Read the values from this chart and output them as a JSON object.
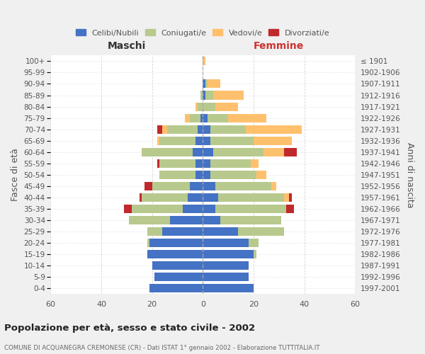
{
  "age_groups": [
    "0-4",
    "5-9",
    "10-14",
    "15-19",
    "20-24",
    "25-29",
    "30-34",
    "35-39",
    "40-44",
    "45-49",
    "50-54",
    "55-59",
    "60-64",
    "65-69",
    "70-74",
    "75-79",
    "80-84",
    "85-89",
    "90-94",
    "95-99",
    "100+"
  ],
  "birth_years": [
    "1997-2001",
    "1992-1996",
    "1987-1991",
    "1982-1986",
    "1977-1981",
    "1972-1976",
    "1967-1971",
    "1962-1966",
    "1957-1961",
    "1952-1956",
    "1947-1951",
    "1942-1946",
    "1937-1941",
    "1932-1936",
    "1927-1931",
    "1922-1926",
    "1917-1921",
    "1912-1916",
    "1907-1911",
    "1902-1906",
    "≤ 1901"
  ],
  "male": {
    "celibi": [
      21,
      19,
      20,
      22,
      21,
      16,
      13,
      8,
      6,
      5,
      3,
      3,
      4,
      3,
      2,
      1,
      0,
      0,
      0,
      0,
      0
    ],
    "coniugati": [
      0,
      0,
      0,
      0,
      1,
      6,
      16,
      20,
      18,
      15,
      14,
      14,
      20,
      14,
      12,
      4,
      2,
      1,
      0,
      0,
      0
    ],
    "vedovi": [
      0,
      0,
      0,
      0,
      0,
      0,
      0,
      0,
      0,
      0,
      0,
      0,
      0,
      1,
      2,
      2,
      1,
      0,
      0,
      0,
      0
    ],
    "divorziati": [
      0,
      0,
      0,
      0,
      0,
      0,
      0,
      3,
      1,
      3,
      0,
      1,
      0,
      0,
      2,
      0,
      0,
      0,
      0,
      0,
      0
    ]
  },
  "female": {
    "nubili": [
      20,
      18,
      18,
      20,
      18,
      14,
      7,
      5,
      6,
      5,
      3,
      3,
      4,
      3,
      3,
      2,
      0,
      1,
      1,
      0,
      0
    ],
    "coniugate": [
      0,
      0,
      0,
      1,
      4,
      18,
      24,
      28,
      26,
      22,
      18,
      16,
      20,
      17,
      14,
      8,
      5,
      3,
      1,
      0,
      0
    ],
    "vedove": [
      0,
      0,
      0,
      0,
      0,
      0,
      0,
      0,
      2,
      2,
      4,
      3,
      8,
      15,
      22,
      15,
      9,
      12,
      5,
      0,
      1
    ],
    "divorziate": [
      0,
      0,
      0,
      0,
      0,
      0,
      0,
      3,
      1,
      0,
      0,
      0,
      5,
      0,
      0,
      0,
      0,
      0,
      0,
      0,
      0
    ]
  },
  "colors": {
    "celibi": "#4472c4",
    "coniugati": "#b8c98d",
    "vedovi": "#ffc06e",
    "divorziati": "#c0292b"
  },
  "xlim": 60,
  "title": "Popolazione per età, sesso e stato civile - 2002",
  "subtitle": "COMUNE DI ACQUANEGRA CREMONESE (CR) - Dati ISTAT 1° gennaio 2002 - Elaborazione TUTTITALIA.IT",
  "ylabel": "Fasce di età",
  "right_ylabel": "Anni di nascita",
  "legend_labels": [
    "Celibi/Nubili",
    "Coniugati/e",
    "Vedovi/e",
    "Divorziati/e"
  ],
  "maschi_label": "Maschi",
  "femmine_label": "Femmine",
  "bg_color": "#f0f0f0",
  "plot_bg": "#ffffff"
}
